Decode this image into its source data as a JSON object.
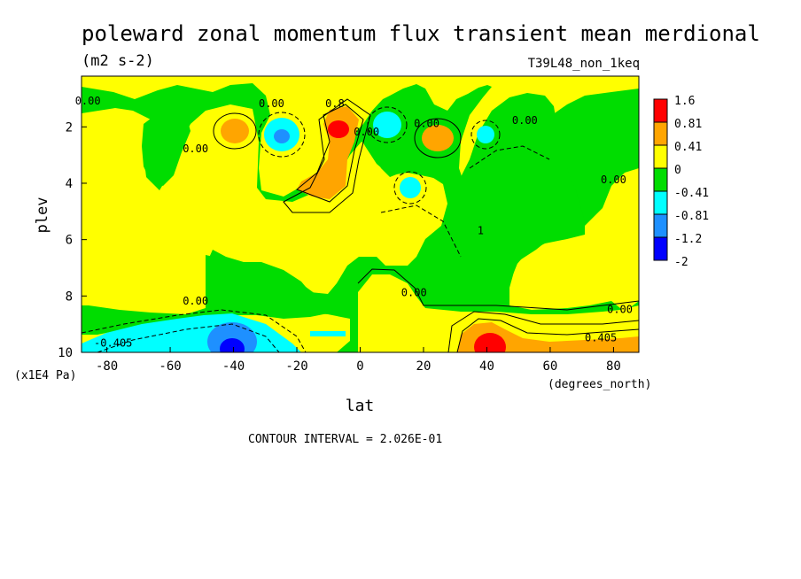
{
  "chart_data": {
    "type": "heatmap",
    "title": "poleward zonal momentum flux transient mean merdional",
    "units": "(m2 s-2)",
    "run_label": "T39L48_non_1keq",
    "xlabel": "lat",
    "x_units": "(degrees_north)",
    "ylabel": "plev",
    "y_units": "(x1E4 Pa)",
    "xlim": [
      -88,
      88
    ],
    "ylim": [
      0.2,
      10
    ],
    "y_inverted": true,
    "x_ticks": [
      -80,
      -60,
      -40,
      -20,
      0,
      20,
      40,
      60,
      80
    ],
    "y_ticks": [
      2,
      4,
      6,
      8,
      10
    ],
    "x_tick_labels": [
      "-80",
      "-60",
      "-40",
      "-20",
      "0",
      "20",
      "40",
      "60",
      "80"
    ],
    "y_tick_labels": [
      "2",
      "4",
      "6",
      "8",
      "10"
    ],
    "contour_interval_text": "CONTOUR INTERVAL = 2.026E-01",
    "colorbar": {
      "labels": [
        "1.6",
        "0.81",
        "0.41",
        "0",
        "-0.41",
        "-0.81",
        "-1.2",
        "-2"
      ],
      "colors": [
        "#ff0000",
        "#ffa500",
        "#ffff00",
        "#00dd00",
        "#00ffff",
        "#1e90ff",
        "#0000ff"
      ]
    },
    "contour_labels": [
      {
        "text": "0.00",
        "lat": -86,
        "plev": 1.2
      },
      {
        "text": "0.00",
        "lat": -28,
        "plev": 1.3
      },
      {
        "text": "0.00",
        "lat": -52,
        "plev": 2.9
      },
      {
        "text": "0.8",
        "lat": -8,
        "plev": 1.3
      },
      {
        "text": "0.00",
        "lat": 2,
        "plev": 2.3
      },
      {
        "text": "0.00",
        "lat": 21,
        "plev": 2.0
      },
      {
        "text": "0.00",
        "lat": 52,
        "plev": 1.9
      },
      {
        "text": "0.00",
        "lat": 80,
        "plev": 4.0
      },
      {
        "text": "0.00",
        "lat": -52,
        "plev": 8.3
      },
      {
        "text": "0.00",
        "lat": 17,
        "plev": 8.0
      },
      {
        "text": "0.00",
        "lat": 82,
        "plev": 8.6
      },
      {
        "text": "1",
        "lat": 38,
        "plev": 5.8
      },
      {
        "text": "-0.405",
        "lat": -78,
        "plev": 9.8
      },
      {
        "text": "0.405",
        "lat": 76,
        "plev": 9.6
      }
    ],
    "regions": [
      {
        "level": "-0.41 to 0",
        "color": "#00dd00",
        "lat": -88,
        "lat2": 88,
        "plev": 0.2,
        "plev2": 10
      },
      {
        "level": "0 to 0.41",
        "color": "#ffff00",
        "desc": "broad positive area"
      },
      {
        "level": "0.81 to 1.6",
        "color": "#ff0000",
        "lat": -7,
        "plev": 2.0
      },
      {
        "level": "0.41 to 0.81",
        "color": "#ffa500",
        "lat": -14,
        "plev": 4.0
      },
      {
        "level": "0.41 to 0.81",
        "color": "#ffa500",
        "lat": -40,
        "plev": 2.1
      },
      {
        "level": "0.41 to 0.81",
        "color": "#ffa500",
        "lat": 25,
        "plev": 2.3
      },
      {
        "level": "-1.2 to -0.81",
        "color": "#1e90ff",
        "lat": -24,
        "plev": 2.2
      },
      {
        "level": "-0.81 to -0.41",
        "color": "#00ffff",
        "lat": 8,
        "plev": 1.9
      },
      {
        "level": "-0.81 to -0.41",
        "color": "#00ffff",
        "lat": 16,
        "plev": 4.1
      },
      {
        "level": "-0.81 to -0.41",
        "color": "#00ffff",
        "lat": 39,
        "plev": 2.3
      },
      {
        "level": "-2 to -1.2",
        "color": "#0000ff",
        "lat": -42,
        "plev": 9.8
      },
      {
        "level": "0.81 to 1.6",
        "color": "#ff0000",
        "lat": 42,
        "plev": 9.8
      }
    ]
  }
}
